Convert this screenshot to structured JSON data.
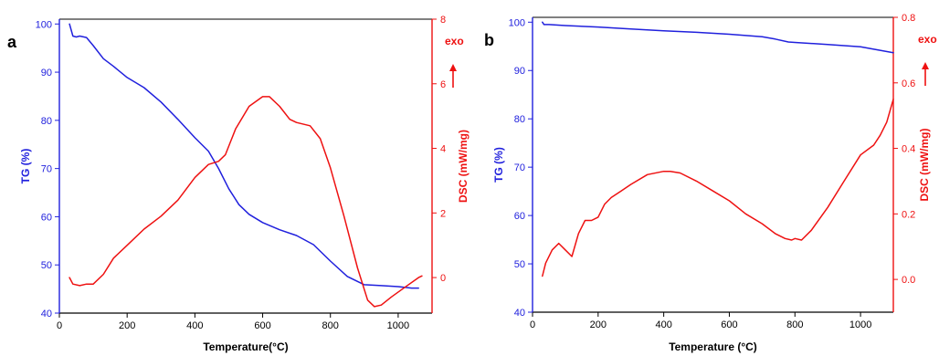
{
  "chart_data": [
    {
      "type": "line",
      "panel_label": "a",
      "xlabel": "Temperature(",
      "xlabel_unit": "°C",
      "xlabel_close": ")",
      "ylabel_left": "TG (%)",
      "ylabel_right": "DSC (mW/mg)",
      "exo_label": "exo",
      "xlim": [
        0,
        1100
      ],
      "ylim_left": [
        40,
        101
      ],
      "ylim_right": [
        -1.1,
        8
      ],
      "x_ticks": [
        0,
        200,
        400,
        600,
        800,
        1000
      ],
      "y_left_ticks": [
        40,
        50,
        60,
        70,
        80,
        90,
        100
      ],
      "y_right_ticks": [
        0,
        2,
        4,
        6,
        8
      ],
      "colors": {
        "left": "#2020dd",
        "right": "#ee1111"
      },
      "series": [
        {
          "axis": "left",
          "color": "#2020dd",
          "x": [
            30,
            40,
            50,
            60,
            80,
            100,
            130,
            160,
            200,
            250,
            300,
            350,
            400,
            440,
            470,
            500,
            530,
            560,
            600,
            650,
            700,
            750,
            800,
            850,
            900,
            950,
            1000,
            1040,
            1060
          ],
          "y": [
            100,
            97.5,
            97.3,
            97.5,
            97.2,
            95.5,
            92.8,
            91.2,
            88.9,
            86.8,
            83.8,
            80.2,
            76.4,
            73.6,
            70.0,
            65.8,
            62.5,
            60.5,
            58.8,
            57.3,
            56.1,
            54.2,
            50.8,
            47.6,
            45.9,
            45.7,
            45.5,
            45.2,
            45.2
          ]
        },
        {
          "axis": "right",
          "color": "#ee1111",
          "x": [
            30,
            40,
            60,
            80,
            100,
            130,
            160,
            200,
            250,
            300,
            350,
            400,
            440,
            470,
            490,
            520,
            560,
            600,
            620,
            650,
            680,
            700,
            740,
            770,
            800,
            840,
            880,
            910,
            930,
            950,
            980,
            1020,
            1060,
            1070
          ],
          "y": [
            0.0,
            -0.2,
            -0.25,
            -0.2,
            -0.2,
            0.1,
            0.6,
            1.0,
            1.5,
            1.9,
            2.4,
            3.1,
            3.5,
            3.6,
            3.8,
            4.6,
            5.3,
            5.6,
            5.6,
            5.3,
            4.9,
            4.8,
            4.7,
            4.3,
            3.4,
            1.9,
            0.3,
            -0.7,
            -0.9,
            -0.85,
            -0.6,
            -0.3,
            0.0,
            0.05
          ]
        }
      ]
    },
    {
      "type": "line",
      "panel_label": "b",
      "xlabel": "Temperature (",
      "xlabel_unit": "°C",
      "xlabel_close": ")",
      "ylabel_left": "TG (%)",
      "ylabel_right": "DSC (mW/mg)",
      "exo_label": "exo",
      "xlim": [
        0,
        1100
      ],
      "ylim_left": [
        40,
        101
      ],
      "ylim_right": [
        -0.1,
        0.8
      ],
      "x_ticks": [
        0,
        200,
        400,
        600,
        800,
        1000
      ],
      "y_left_ticks": [
        40,
        50,
        60,
        70,
        80,
        90,
        100
      ],
      "y_right_ticks": [
        0.0,
        0.2,
        0.4,
        0.6,
        0.8
      ],
      "colors": {
        "left": "#2020dd",
        "right": "#ee1111"
      },
      "series": [
        {
          "axis": "left",
          "color": "#2020dd",
          "x": [
            30,
            35,
            50,
            100,
            200,
            300,
            400,
            500,
            600,
            700,
            740,
            780,
            800,
            900,
            1000,
            1050,
            1100
          ],
          "y": [
            100,
            99.5,
            99.5,
            99.3,
            99.0,
            98.6,
            98.2,
            97.9,
            97.5,
            97.0,
            96.5,
            95.9,
            95.8,
            95.4,
            94.9,
            94.3,
            93.7
          ]
        },
        {
          "axis": "right",
          "color": "#ee1111",
          "x": [
            30,
            40,
            60,
            80,
            100,
            120,
            140,
            160,
            180,
            200,
            220,
            240,
            270,
            300,
            350,
            400,
            420,
            450,
            500,
            550,
            600,
            650,
            700,
            740,
            770,
            790,
            800,
            820,
            850,
            900,
            950,
            1000,
            1040,
            1060,
            1080,
            1100
          ],
          "y": [
            0.01,
            0.05,
            0.09,
            0.11,
            0.09,
            0.07,
            0.14,
            0.18,
            0.18,
            0.19,
            0.23,
            0.25,
            0.27,
            0.29,
            0.32,
            0.33,
            0.33,
            0.325,
            0.3,
            0.27,
            0.24,
            0.2,
            0.17,
            0.14,
            0.125,
            0.12,
            0.125,
            0.12,
            0.15,
            0.22,
            0.3,
            0.38,
            0.41,
            0.44,
            0.48,
            0.55
          ]
        }
      ]
    }
  ]
}
